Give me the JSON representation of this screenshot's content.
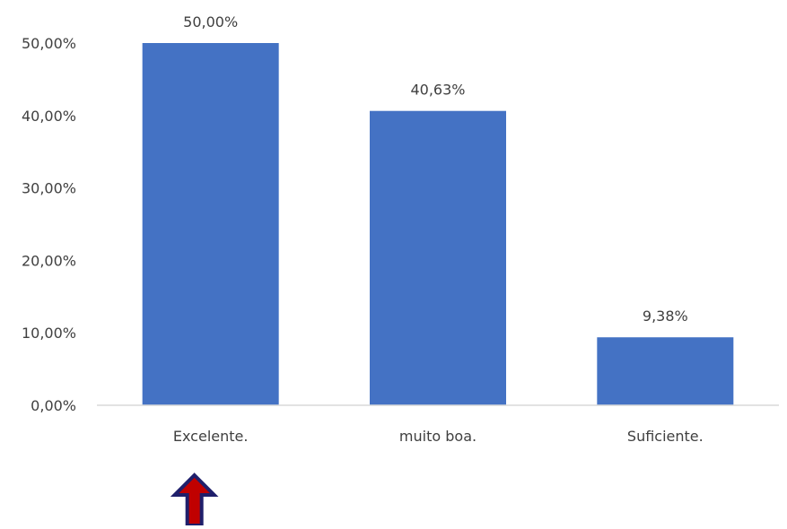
{
  "chart_data": {
    "type": "bar",
    "categories": [
      "Excelente.",
      "muito boa.",
      "Suficiente."
    ],
    "values": [
      50.0,
      40.63,
      9.38
    ],
    "data_labels": [
      "50,00%",
      "40,63%",
      "9,38%"
    ],
    "yticks": [
      0,
      10,
      20,
      30,
      40,
      50
    ],
    "ytick_labels": [
      "0,00%",
      "10,00%",
      "20,00%",
      "30,00%",
      "40,00%",
      "50,00%"
    ],
    "ylim": [
      0,
      50
    ],
    "grid": false,
    "colors": {
      "bar": "#4472C4",
      "axis": "#D9D9D9",
      "text": "#404040"
    },
    "annotation": {
      "type": "up-arrow",
      "points_to_category": "Excelente.",
      "fill": "#C00000",
      "stroke": "#1F1F6B"
    }
  }
}
